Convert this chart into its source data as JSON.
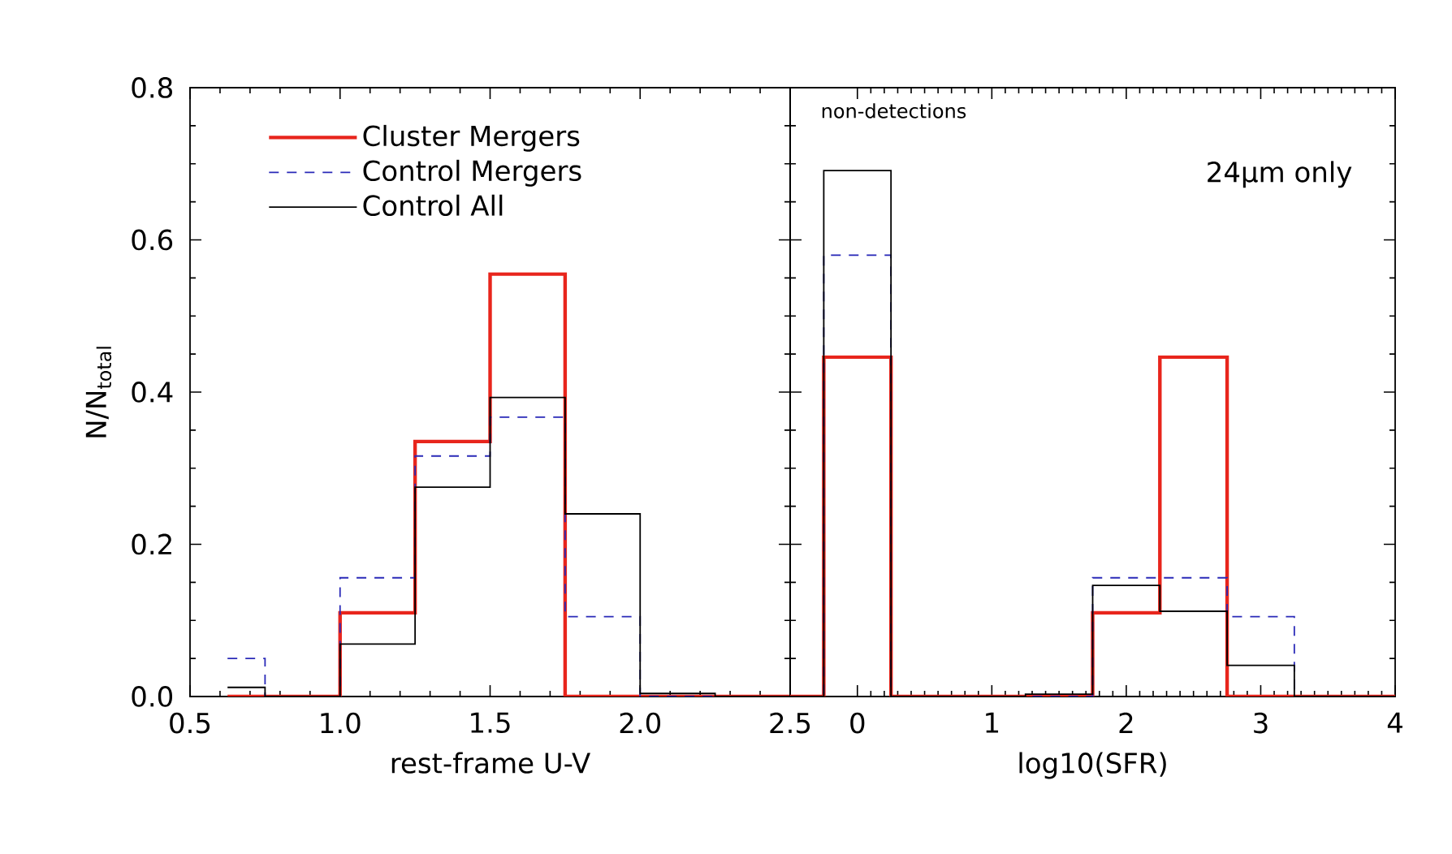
{
  "chart_data": [
    {
      "type": "histogram",
      "xlabel": "rest-frame U-V",
      "ylabel": "N/N$_{total}$",
      "bins": [
        0.625,
        0.75,
        1.0,
        1.25,
        1.5,
        1.75,
        2.0,
        2.25,
        2.5
      ],
      "series": [
        {
          "name": "Cluster Mergers",
          "color": "#e8251c",
          "line_style": "solid",
          "values": [
            0,
            0,
            0.11,
            0.335,
            0.555,
            0,
            0,
            0
          ]
        },
        {
          "name": "Control Mergers",
          "color": "#2a2ab8",
          "line_style": "dashed",
          "values": [
            0.05,
            0,
            0.156,
            0.316,
            0.367,
            0.105,
            0,
            0
          ]
        },
        {
          "name": "Control All",
          "color": "#000000",
          "line_style": "solid",
          "values": [
            0.012,
            0,
            0.069,
            0.275,
            0.393,
            0.24,
            0.004,
            0
          ]
        }
      ],
      "xlim": [
        0.5,
        2.5
      ],
      "ylim": [
        0,
        0.8
      ],
      "xticks": [
        0.5,
        {
          "value": 1,
          "label": "1.0"
        },
        1.5,
        {
          "value": 2,
          "label": "2.0"
        },
        2.5
      ],
      "yticks": [
        {
          "value": 0,
          "label": "0.0"
        },
        0.2,
        0.4,
        0.6,
        0.8
      ],
      "legend": "top left",
      "grid": false
    },
    {
      "type": "histogram",
      "xlabel": "log10(SFR)",
      "annotations": [
        "non-detections",
        "24μm only"
      ],
      "bins": [
        -0.5,
        -0.25,
        0.25,
        1.25,
        1.75,
        2.25,
        2.75,
        3.25,
        4.0
      ],
      "series": [
        {
          "color": "#e8251c",
          "line_style": "solid",
          "values": [
            0,
            0.446,
            0,
            0,
            0.11,
            0.446,
            0,
            0
          ]
        },
        {
          "color": "#2a2ab8",
          "line_style": "dashed",
          "values": [
            0,
            0.58,
            0,
            0,
            0.156,
            0.156,
            0.105,
            0
          ]
        },
        {
          "color": "#000000",
          "line_style": "solid",
          "values": [
            0,
            0.691,
            0,
            0.003,
            0.146,
            0.112,
            0.041,
            0
          ]
        }
      ],
      "xlim": [
        -0.5,
        4
      ],
      "ylim": [
        0,
        0.8
      ],
      "xticks": [
        0,
        1,
        2,
        3,
        4
      ],
      "yticks": [
        0,
        0.2,
        0.4,
        0.6,
        0.8
      ],
      "tick_labels": "x",
      "grid": false
    }
  ]
}
